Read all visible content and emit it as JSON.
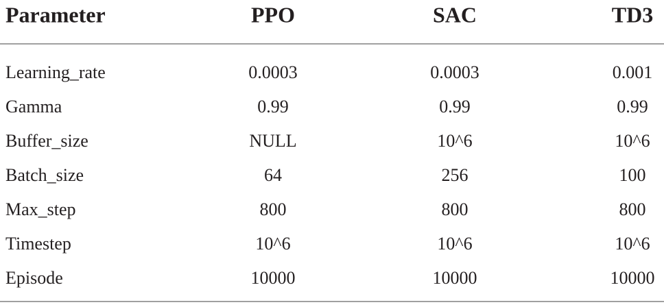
{
  "table": {
    "header": [
      "Parameter",
      "PPO",
      "SAC",
      "TD3"
    ],
    "rows": [
      [
        "Learning_rate",
        "0.0003",
        "0.0003",
        "0.001"
      ],
      [
        "Gamma",
        "0.99",
        "0.99",
        "0.99"
      ],
      [
        "Buffer_size",
        "NULL",
        "10^6",
        "10^6"
      ],
      [
        "Batch_size",
        "64",
        "256",
        "100"
      ],
      [
        "Max_step",
        "800",
        "800",
        "800"
      ],
      [
        "Timestep",
        "10^6",
        "10^6",
        "10^6"
      ],
      [
        "Episode",
        "10000",
        "10000",
        "10000"
      ]
    ]
  }
}
